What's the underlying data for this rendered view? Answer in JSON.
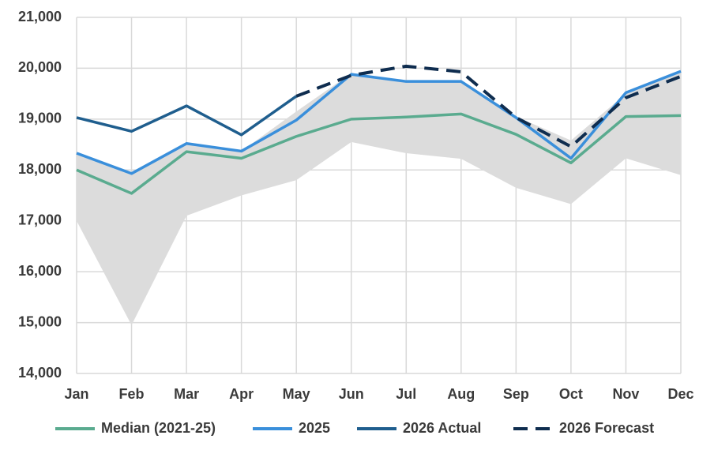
{
  "chart_data": {
    "type": "line",
    "categories": [
      "Jan",
      "Feb",
      "Mar",
      "Apr",
      "May",
      "Jun",
      "Jul",
      "Aug",
      "Sep",
      "Oct",
      "Nov",
      "Dec"
    ],
    "range": {
      "color": "#dcdcdc",
      "low": [
        17000,
        14950,
        17100,
        17500,
        17800,
        18550,
        18330,
        18220,
        17650,
        17330,
        18230,
        17900
      ],
      "high": [
        18330,
        17930,
        18520,
        18370,
        19150,
        19900,
        19750,
        19750,
        19050,
        18580,
        19500,
        19940
      ]
    },
    "series": [
      {
        "name": "Median (2021-25)",
        "color": "#5aab8f",
        "dash": false,
        "values": [
          18000,
          17540,
          18360,
          18230,
          18660,
          19000,
          19040,
          19100,
          18700,
          18140,
          19050,
          19070
        ]
      },
      {
        "name": "2025",
        "color": "#3a8fdb",
        "dash": false,
        "values": [
          18330,
          17930,
          18520,
          18370,
          18980,
          19880,
          19740,
          19740,
          19030,
          18230,
          19520,
          19940
        ]
      },
      {
        "name": "2026 Actual",
        "color": "#1f5e8e",
        "dash": false,
        "values": [
          19030,
          18760,
          19260,
          18690,
          19450,
          null,
          null,
          null,
          null,
          null,
          null,
          null
        ]
      },
      {
        "name": "2026 Forecast",
        "color": "#0f2d4f",
        "dash": true,
        "values": [
          null,
          null,
          null,
          null,
          19450,
          19860,
          20040,
          19930,
          19030,
          18460,
          19420,
          19840
        ]
      }
    ],
    "ylim": [
      14000,
      21000
    ],
    "yticks": [
      {
        "value": 14000,
        "label": "14,000"
      },
      {
        "value": 15000,
        "label": "15,000"
      },
      {
        "value": 16000,
        "label": "16,000"
      },
      {
        "value": 17000,
        "label": "17,000"
      },
      {
        "value": 18000,
        "label": "18,000"
      },
      {
        "value": 19000,
        "label": "19,000"
      },
      {
        "value": 20000,
        "label": "20,000"
      },
      {
        "value": 21000,
        "label": "21,000"
      }
    ],
    "grid": true,
    "legend": "bottom"
  }
}
